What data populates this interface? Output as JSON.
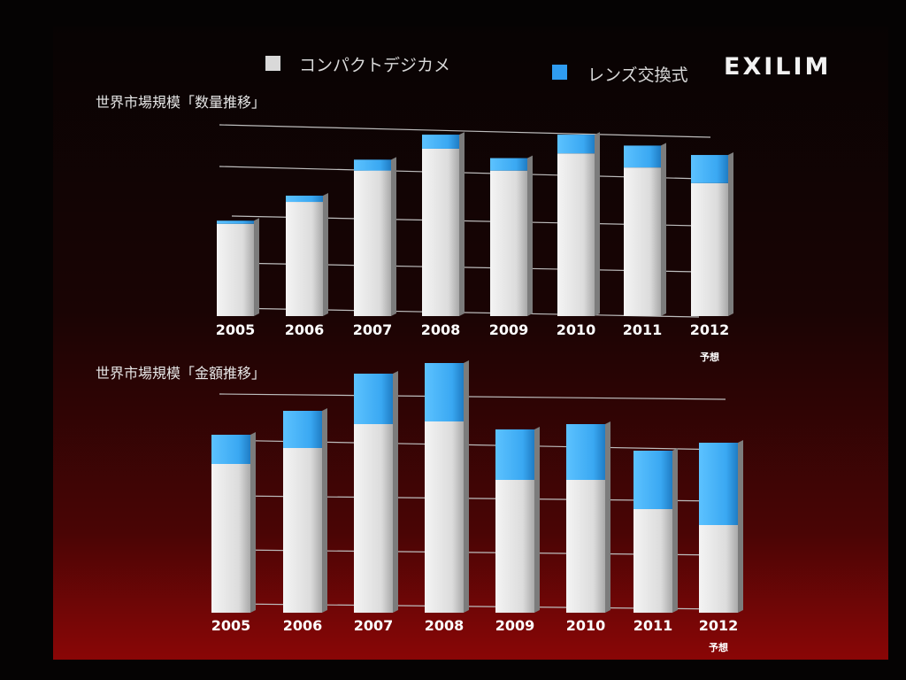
{
  "logo": {
    "text": "EXILIM"
  },
  "legend": {
    "items": [
      {
        "label": "コンパクトデジカメ",
        "color": "#d9d9d9"
      },
      {
        "label": "レンズ交換式",
        "color": "#2f9cf0"
      }
    ]
  },
  "colors": {
    "compact": "#e2e2e2",
    "interchangeable": "#45b4f5",
    "background": "#4a0505"
  },
  "chart_data": [
    {
      "type": "bar",
      "stacked": true,
      "title": "世界市場規模「数量推移」",
      "categories": [
        "2005",
        "2006",
        "2007",
        "2008",
        "2009",
        "2010",
        "2011",
        "2012"
      ],
      "category_notes": [
        "",
        "",
        "",
        "",
        "",
        "",
        "",
        "予想"
      ],
      "series": [
        {
          "name": "コンパクトデジカメ",
          "values": [
            59,
            73,
            93,
            107,
            93,
            104,
            95,
            85
          ]
        },
        {
          "name": "レンズ交換式",
          "values": [
            2,
            4,
            7,
            9,
            8,
            12,
            14,
            18
          ]
        }
      ],
      "ylim": [
        0,
        120
      ],
      "grid": true,
      "legend_position": "top"
    },
    {
      "type": "bar",
      "stacked": true,
      "title": "世界市場規模「金額推移」",
      "categories": [
        "2005",
        "2006",
        "2007",
        "2008",
        "2009",
        "2010",
        "2011",
        "2012"
      ],
      "category_notes": [
        "",
        "",
        "",
        "",
        "",
        "",
        "",
        "予想"
      ],
      "series": [
        {
          "name": "コンパクトデジカメ",
          "values": [
            56,
            62,
            71,
            72,
            50,
            50,
            39,
            33
          ]
        },
        {
          "name": "レンズ交換式",
          "values": [
            11,
            14,
            19,
            22,
            19,
            21,
            22,
            31
          ]
        }
      ],
      "ylim": [
        0,
        100
      ],
      "grid": true,
      "legend_position": "top"
    }
  ]
}
